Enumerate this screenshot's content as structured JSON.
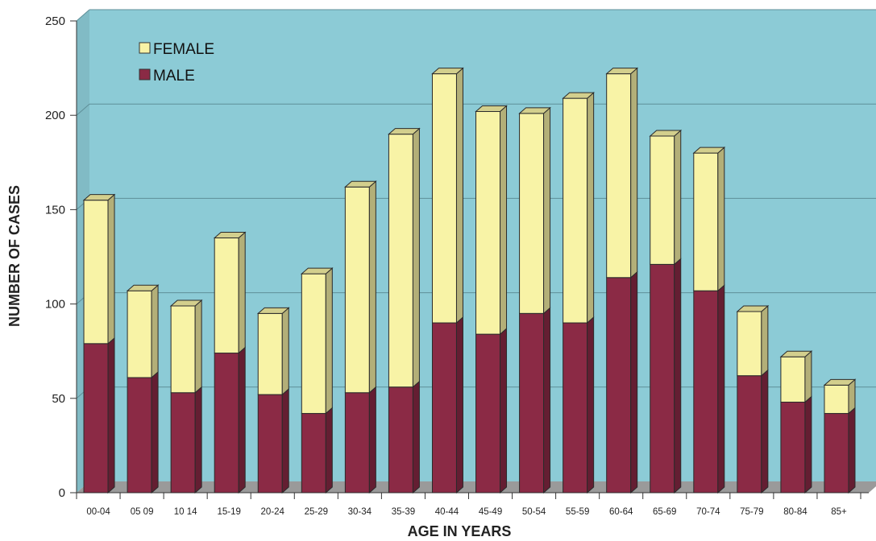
{
  "chart_data": {
    "type": "bar",
    "stacked": true,
    "categories": [
      "00-04",
      "05 09",
      "10 14",
      "15-19",
      "20-24",
      "25-29",
      "30-34",
      "35-39",
      "40-44",
      "45-49",
      "50-54",
      "55-59",
      "60-64",
      "65-69",
      "70-74",
      "75-79",
      "80-84",
      "85+"
    ],
    "series": [
      {
        "name": "MALE",
        "color": "#8b2a45",
        "values": [
          79,
          61,
          53,
          74,
          52,
          42,
          53,
          56,
          90,
          84,
          95,
          90,
          114,
          121,
          107,
          62,
          48,
          42
        ]
      },
      {
        "name": "FEMALE",
        "color": "#f8f3a6",
        "values": [
          76,
          46,
          46,
          61,
          43,
          74,
          109,
          134,
          132,
          118,
          106,
          119,
          108,
          68,
          73,
          34,
          24,
          15
        ]
      }
    ],
    "xlabel": "AGE IN YEARS",
    "ylabel": "NUMBER OF CASES",
    "ylim": [
      0,
      250
    ],
    "yticks": [
      "0",
      "50",
      "100",
      "150",
      "200",
      "250"
    ],
    "legend": {
      "position": "top-left",
      "entries": [
        "FEMALE",
        "MALE"
      ]
    },
    "grid": true,
    "colors": {
      "plot_background": "#8ccbd6",
      "floor": "#9a9a9a",
      "gridline": "#5f8f98"
    }
  }
}
